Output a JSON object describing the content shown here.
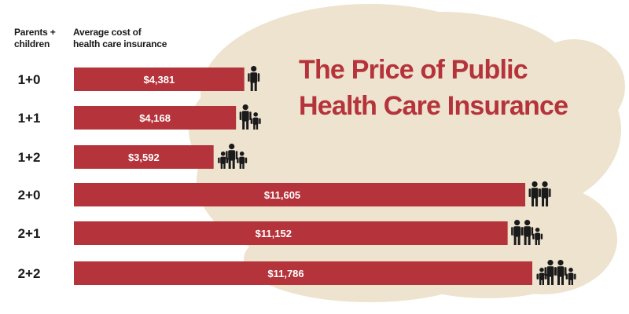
{
  "colors": {
    "bar": "#b5333a",
    "cloud": "#ede3cf",
    "text": "#1a1a1a",
    "title": "#b5333a",
    "bar_label": "#ffffff"
  },
  "header": {
    "category_label": [
      "Parents +",
      "children"
    ],
    "value_label": [
      "Average cost of",
      "health care insurance"
    ]
  },
  "title_lines": [
    "The Price of Public",
    "Health Care Insurance"
  ],
  "chart_data": {
    "type": "bar",
    "orientation": "horizontal",
    "title": "The Price of Public Health Care Insurance",
    "categories": [
      "1+0",
      "1+1",
      "1+2",
      "2+0",
      "2+1",
      "2+2"
    ],
    "values": [
      4381,
      4168,
      3592,
      11605,
      11152,
      11786
    ],
    "value_labels": [
      "$4,381",
      "$4,168",
      "$3,592",
      "$11,605",
      "$11,152",
      "$11,786"
    ],
    "category_label": "Parents + children",
    "value_label": "Average cost of health care insurance",
    "xlim": [
      0,
      12000
    ],
    "grid": false,
    "icons": [
      [
        "adult-icon"
      ],
      [
        "adult-icon",
        "child-icon"
      ],
      [
        "child-icon",
        "adult-icon",
        "child-icon"
      ],
      [
        "adult-icon",
        "adult-icon"
      ],
      [
        "adult-icon",
        "adult-icon",
        "child-icon"
      ],
      [
        "child-icon",
        "adult-icon",
        "adult-icon",
        "child-icon"
      ]
    ]
  }
}
